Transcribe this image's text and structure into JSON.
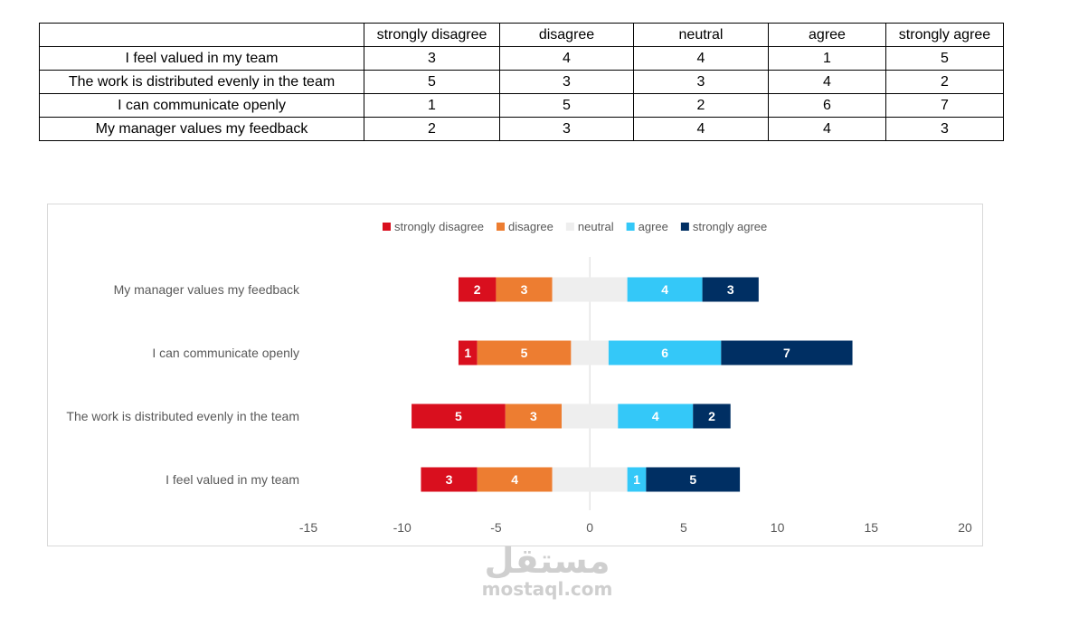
{
  "table": {
    "headers": [
      "",
      "strongly disagree",
      "disagree",
      "neutral",
      "agree",
      "strongly agree"
    ],
    "rows": [
      [
        "I feel valued in my team",
        "3",
        "4",
        "4",
        "1",
        "5"
      ],
      [
        "The work is distributed evenly in the team",
        "5",
        "3",
        "3",
        "4",
        "2"
      ],
      [
        "I can communicate openly",
        "1",
        "5",
        "2",
        "6",
        "7"
      ],
      [
        "My manager values my feedback",
        "2",
        "3",
        "4",
        "4",
        "3"
      ]
    ]
  },
  "chart_data": {
    "type": "bar",
    "orientation": "horizontal",
    "stacking": "diverging",
    "title": "",
    "legend_position": "top",
    "categories": [
      "My manager values my feedback",
      "I can communicate openly",
      "The work is distributed evenly in the team",
      "I feel valued in my team"
    ],
    "series": [
      {
        "name": "strongly disagree",
        "color": "#d90f1e",
        "values": [
          2,
          1,
          5,
          3
        ]
      },
      {
        "name": "disagree",
        "color": "#ed7d31",
        "values": [
          3,
          5,
          3,
          4
        ]
      },
      {
        "name": "neutral",
        "color": "#eeeeee",
        "values": [
          4,
          2,
          3,
          4
        ]
      },
      {
        "name": "agree",
        "color": "#34c8f8",
        "values": [
          4,
          6,
          4,
          1
        ]
      },
      {
        "name": "strongly agree",
        "color": "#002f63",
        "values": [
          3,
          7,
          2,
          5
        ]
      }
    ],
    "xlim": [
      -15,
      20
    ],
    "xticks": [
      -15,
      -10,
      -5,
      0,
      5,
      10,
      15,
      20
    ],
    "grid": false
  },
  "watermark": {
    "arabic": "مستقل",
    "latin": "mostaql.com"
  }
}
